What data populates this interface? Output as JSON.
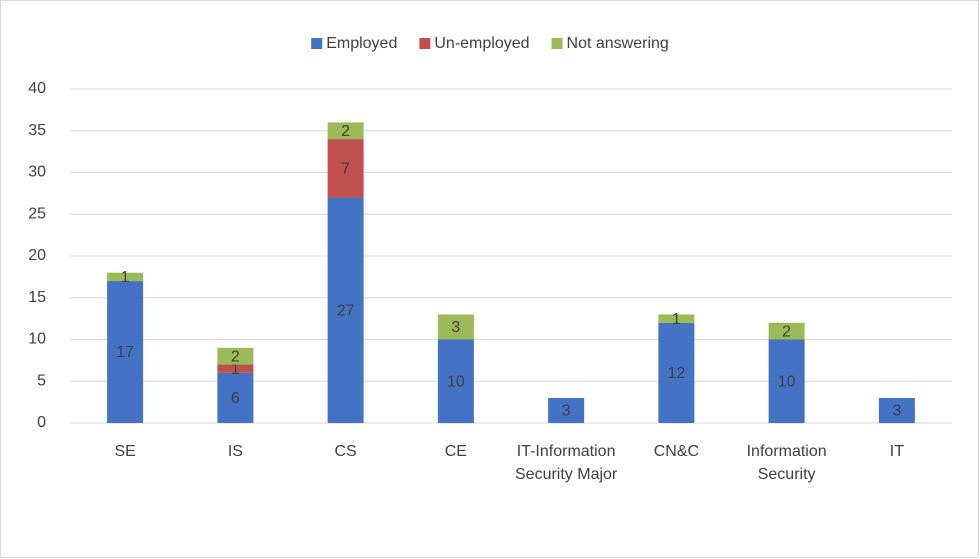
{
  "chart_data": {
    "type": "stacked_bar",
    "categories": [
      "SE",
      "IS",
      "CS",
      "CE",
      "IT-Information Security Major",
      "CN&C",
      "Information Security",
      "IT"
    ],
    "series": [
      {
        "name": "Employed",
        "color": "#4472c4",
        "values": [
          17,
          6,
          27,
          10,
          3,
          12,
          10,
          3
        ]
      },
      {
        "name": "Un-employed",
        "color": "#c0504d",
        "values": [
          null,
          1,
          7,
          null,
          null,
          null,
          null,
          null
        ]
      },
      {
        "name": "Not answering",
        "color": "#9bbb59",
        "values": [
          1,
          2,
          2,
          3,
          null,
          1,
          2,
          null
        ]
      }
    ],
    "ylim": [
      0,
      40
    ],
    "yticks": [
      0,
      5,
      10,
      15,
      20,
      25,
      30,
      35,
      40
    ],
    "grid": true,
    "legend": "top"
  }
}
